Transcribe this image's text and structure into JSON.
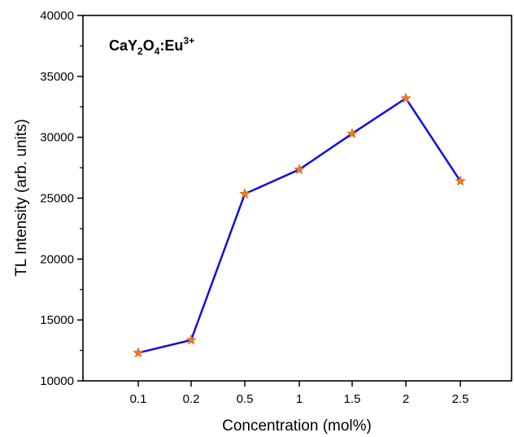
{
  "chart_data": {
    "type": "line",
    "title": "",
    "xlabel": "Concentration (mol%)",
    "ylabel": "TL Intensity (arb. units)",
    "categories": [
      "0.1",
      "0.2",
      "0.5",
      "1",
      "1.5",
      "2",
      "2.5"
    ],
    "ylim": [
      10000,
      40000
    ],
    "yticks": [
      10000,
      15000,
      20000,
      25000,
      30000,
      35000,
      40000
    ],
    "yticks_text": [
      "10000",
      "15000",
      "20000",
      "25000",
      "30000",
      "35000",
      "40000"
    ],
    "series": [
      {
        "values": [
          12300,
          13350,
          25350,
          27350,
          30300,
          33200,
          26400
        ],
        "line_color": "#1010e0",
        "marker": "star",
        "marker_color": "#f07a1e"
      }
    ],
    "annotation": {
      "parts": [
        "CaY",
        "2",
        "O",
        "4",
        ":Eu",
        "3+"
      ]
    },
    "grid": false,
    "legend": "none"
  }
}
